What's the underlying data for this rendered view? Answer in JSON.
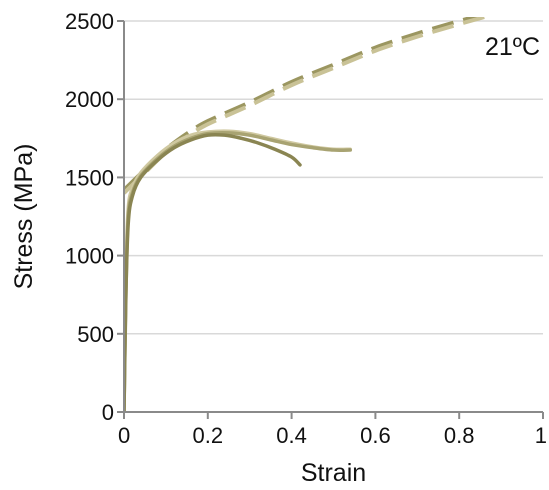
{
  "chart_data": {
    "type": "line",
    "title": "",
    "xlabel": "Strain",
    "ylabel": "Stress (MPa)",
    "annotation": "21ºC",
    "xlim": [
      0,
      1
    ],
    "ylim": [
      0,
      2500
    ],
    "xticks": [
      0,
      0.2,
      0.4,
      0.6,
      0.8,
      1
    ],
    "xtick_labels": [
      "0",
      "0.2",
      "0.4",
      "0.6",
      "0.8",
      "1"
    ],
    "yticks": [
      0,
      500,
      1000,
      1500,
      2000,
      2500
    ],
    "ytick_labels": [
      "0",
      "500",
      "1000",
      "1500",
      "2000",
      "2500"
    ],
    "grid": "horizontal",
    "legend": "none",
    "axis_color": "#8a8a8a",
    "grid_color": "#d9d9d9",
    "series": [
      {
        "style": "dashed",
        "color": "#9b9660",
        "points": [
          [
            0.0,
            1420
          ],
          [
            0.05,
            1550
          ],
          [
            0.1,
            1680
          ],
          [
            0.15,
            1780
          ],
          [
            0.2,
            1860
          ],
          [
            0.3,
            1980
          ],
          [
            0.4,
            2110
          ],
          [
            0.5,
            2220
          ],
          [
            0.6,
            2330
          ],
          [
            0.7,
            2420
          ],
          [
            0.8,
            2500
          ],
          [
            0.86,
            2540
          ]
        ]
      },
      {
        "style": "dashed",
        "color": "#c9c296",
        "points": [
          [
            0.0,
            1400
          ],
          [
            0.05,
            1530
          ],
          [
            0.1,
            1660
          ],
          [
            0.15,
            1760
          ],
          [
            0.2,
            1840
          ],
          [
            0.3,
            1960
          ],
          [
            0.4,
            2090
          ],
          [
            0.5,
            2200
          ],
          [
            0.6,
            2310
          ],
          [
            0.7,
            2400
          ],
          [
            0.8,
            2480
          ],
          [
            0.86,
            2525
          ]
        ]
      },
      {
        "style": "solid",
        "color": "#cfc8a0",
        "points": [
          [
            0.0,
            0
          ],
          [
            0.005,
            900
          ],
          [
            0.01,
            1300
          ],
          [
            0.02,
            1430
          ],
          [
            0.04,
            1530
          ],
          [
            0.08,
            1640
          ],
          [
            0.12,
            1720
          ],
          [
            0.16,
            1770
          ],
          [
            0.2,
            1790
          ],
          [
            0.25,
            1795
          ],
          [
            0.3,
            1780
          ],
          [
            0.35,
            1750
          ],
          [
            0.4,
            1720
          ],
          [
            0.45,
            1695
          ],
          [
            0.5,
            1680
          ],
          [
            0.54,
            1680
          ]
        ]
      },
      {
        "style": "solid",
        "color": "#a8a372",
        "points": [
          [
            0.0,
            0
          ],
          [
            0.005,
            800
          ],
          [
            0.01,
            1250
          ],
          [
            0.02,
            1400
          ],
          [
            0.04,
            1510
          ],
          [
            0.08,
            1620
          ],
          [
            0.12,
            1700
          ],
          [
            0.16,
            1750
          ],
          [
            0.2,
            1780
          ],
          [
            0.25,
            1785
          ],
          [
            0.3,
            1770
          ],
          [
            0.35,
            1740
          ],
          [
            0.4,
            1710
          ],
          [
            0.45,
            1690
          ],
          [
            0.5,
            1675
          ],
          [
            0.54,
            1675
          ]
        ]
      },
      {
        "style": "solid",
        "color": "#8a8552",
        "points": [
          [
            0.0,
            0
          ],
          [
            0.004,
            700
          ],
          [
            0.01,
            1200
          ],
          [
            0.02,
            1380
          ],
          [
            0.04,
            1500
          ],
          [
            0.08,
            1610
          ],
          [
            0.12,
            1690
          ],
          [
            0.16,
            1740
          ],
          [
            0.2,
            1770
          ],
          [
            0.24,
            1770
          ],
          [
            0.28,
            1750
          ],
          [
            0.32,
            1720
          ],
          [
            0.36,
            1680
          ],
          [
            0.4,
            1630
          ],
          [
            0.42,
            1580
          ]
        ]
      }
    ]
  }
}
